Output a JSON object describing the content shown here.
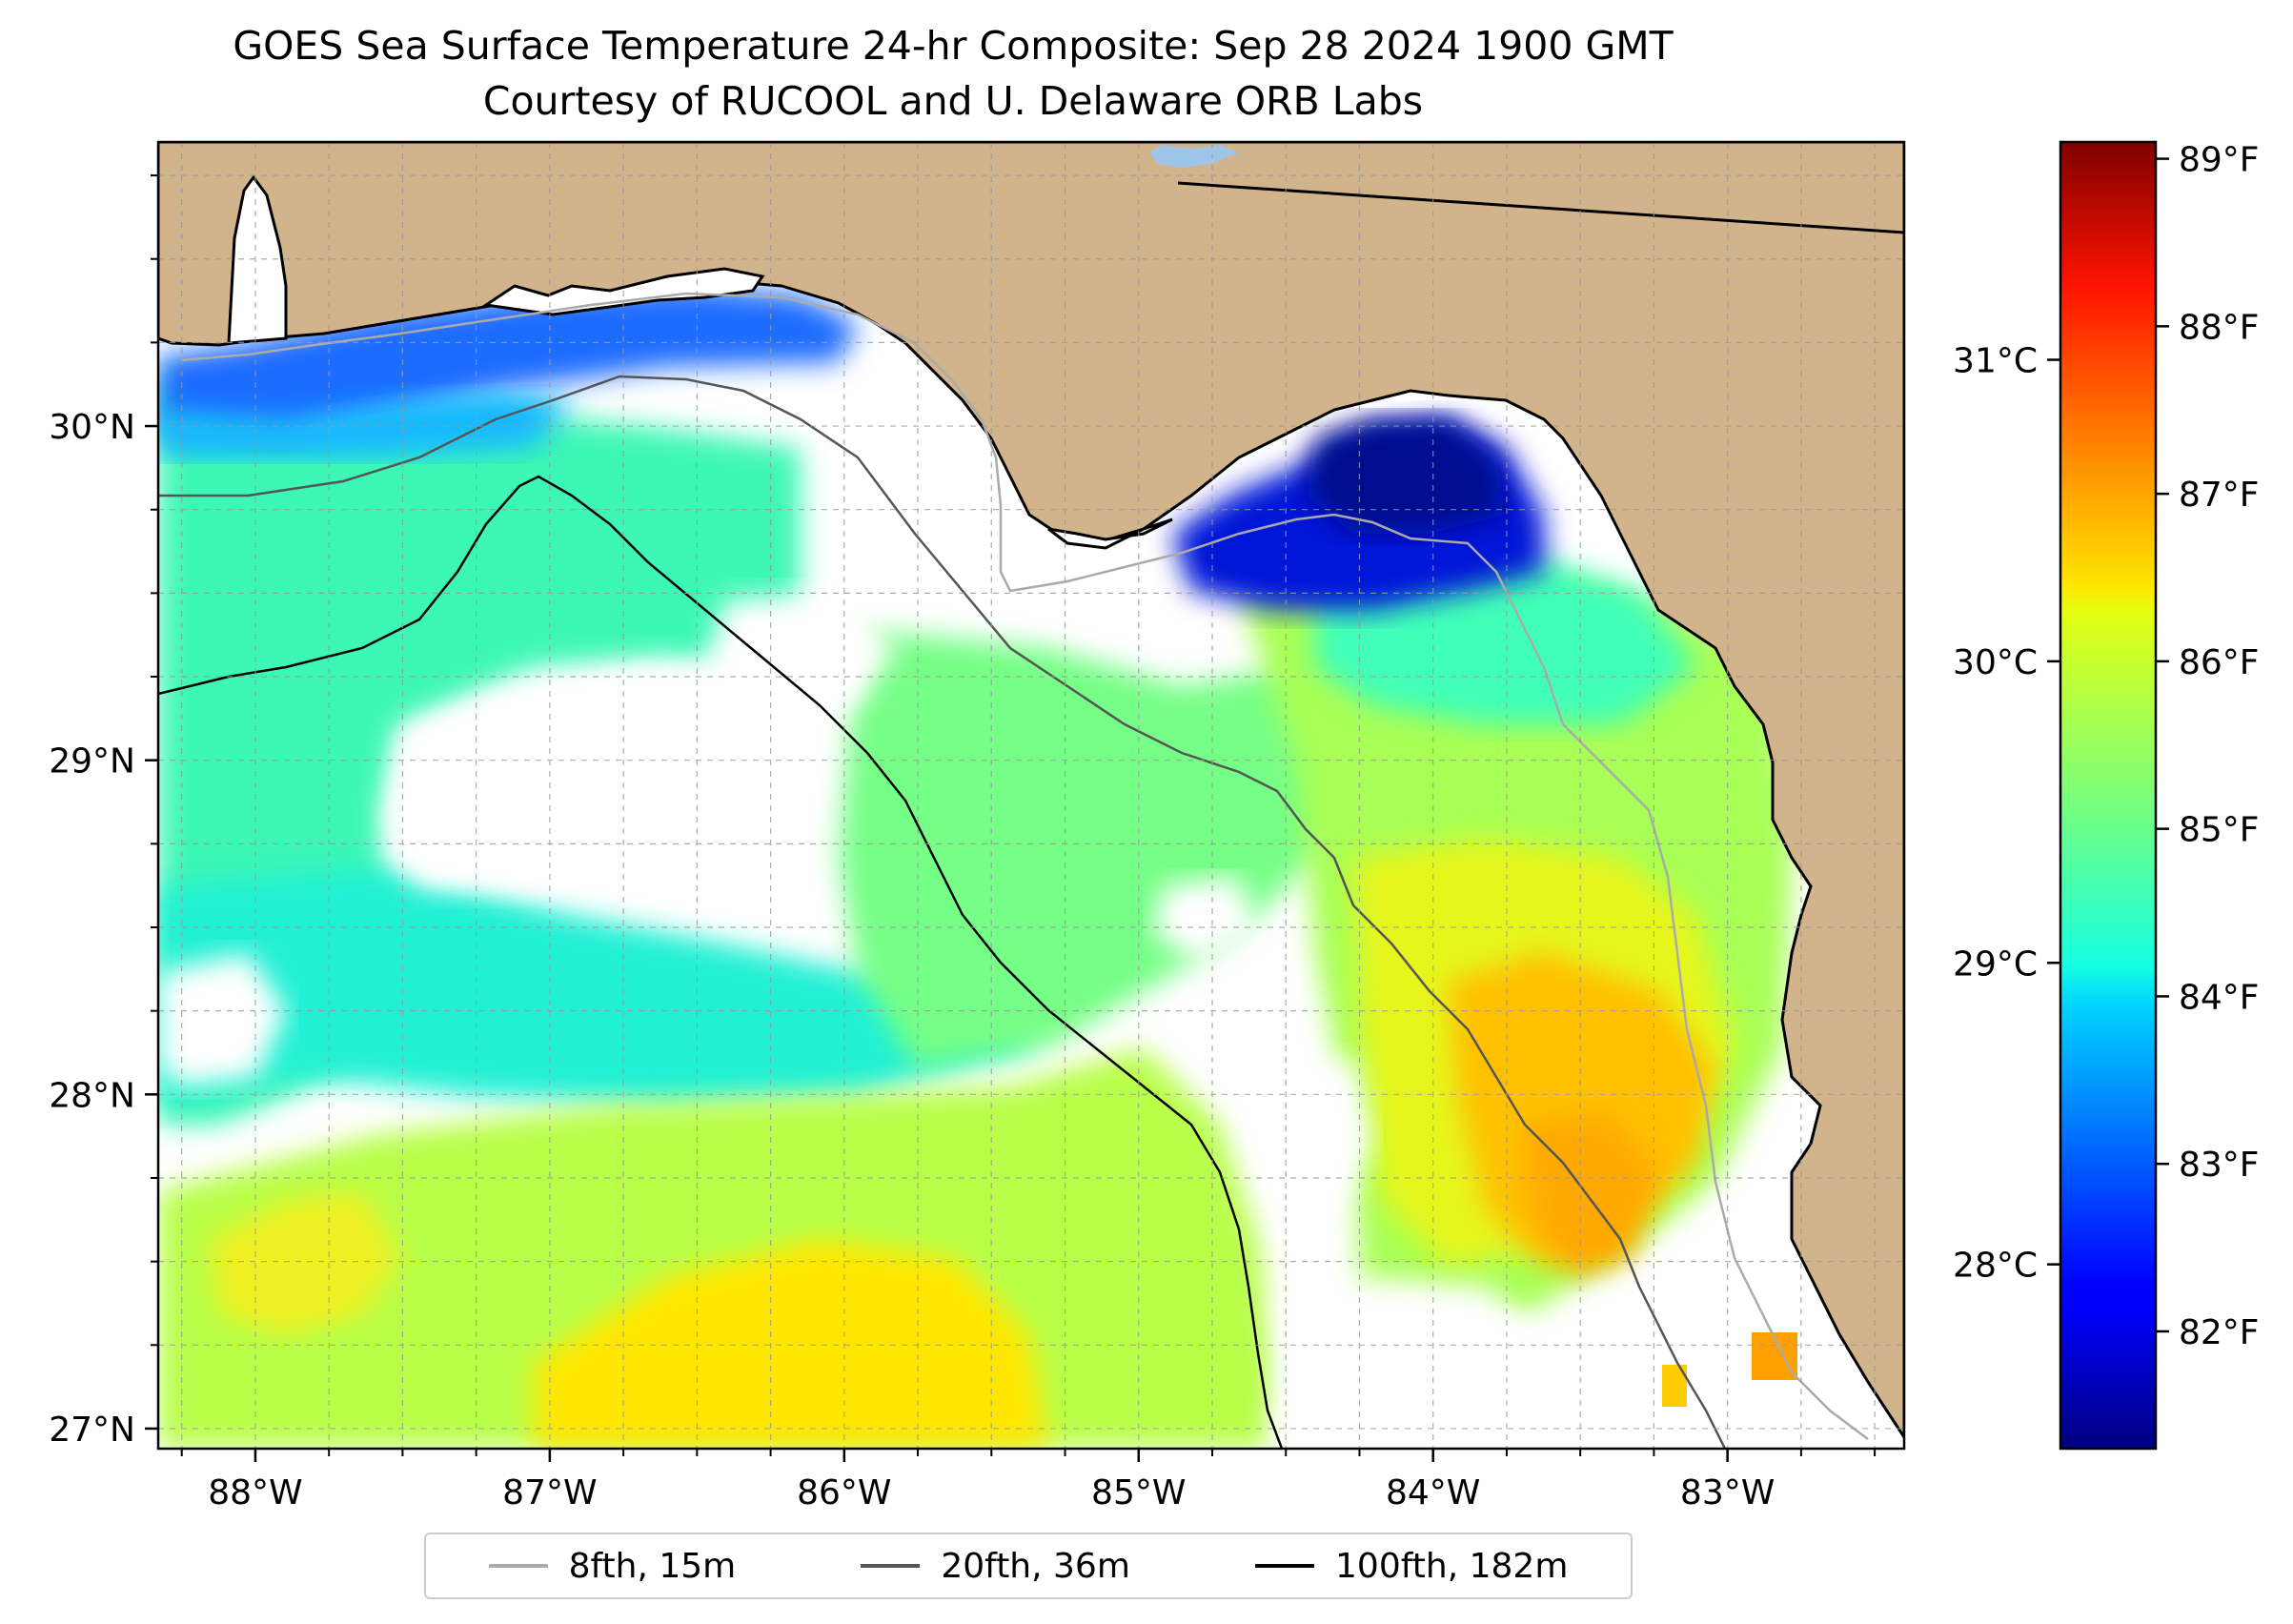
{
  "title": "GOES Sea Surface Temperature 24-hr Composite: Sep 28 2024 1900 GMT",
  "subtitle": "Courtesy of RUCOOL and U. Delaware ORB Labs",
  "map": {
    "lon_range": [
      -88.33,
      -82.4
    ],
    "lat_range": [
      26.94,
      30.85
    ],
    "lon_ticks": [
      {
        "value": -88,
        "label": "88°W"
      },
      {
        "value": -87,
        "label": "87°W"
      },
      {
        "value": -86,
        "label": "86°W"
      },
      {
        "value": -85,
        "label": "85°W"
      },
      {
        "value": -84,
        "label": "84°W"
      },
      {
        "value": -83,
        "label": "83°W"
      }
    ],
    "lat_ticks": [
      {
        "value": 27,
        "label": "27°N"
      },
      {
        "value": 28,
        "label": "28°N"
      },
      {
        "value": 29,
        "label": "29°N"
      },
      {
        "value": 30,
        "label": "30°N"
      }
    ],
    "gridlines": true,
    "colors": {
      "land": "#d2b48c",
      "no_data": "#ffffff",
      "lake": "#9ec5e8"
    }
  },
  "colorbar": {
    "colormap": "jet",
    "range_f": [
      81.3,
      89.1
    ],
    "fahrenheit_ticks": [
      {
        "value": 82,
        "label": "82°F"
      },
      {
        "value": 83,
        "label": "83°F"
      },
      {
        "value": 84,
        "label": "84°F"
      },
      {
        "value": 85,
        "label": "85°F"
      },
      {
        "value": 86,
        "label": "86°F"
      },
      {
        "value": 87,
        "label": "87°F"
      },
      {
        "value": 88,
        "label": "88°F"
      },
      {
        "value": 89,
        "label": "89°F"
      }
    ],
    "celsius_ticks": [
      {
        "value": 28,
        "label": "28°C"
      },
      {
        "value": 29,
        "label": "29°C"
      },
      {
        "value": 30,
        "label": "30°C"
      },
      {
        "value": 31,
        "label": "31°C"
      }
    ]
  },
  "legend": {
    "placement": "bottom-center",
    "items": [
      {
        "label": "8fth, 15m",
        "color": "#aaaaaa"
      },
      {
        "label": "20fth, 36m",
        "color": "#555555"
      },
      {
        "label": "100fth, 182m",
        "color": "#000000"
      }
    ]
  }
}
